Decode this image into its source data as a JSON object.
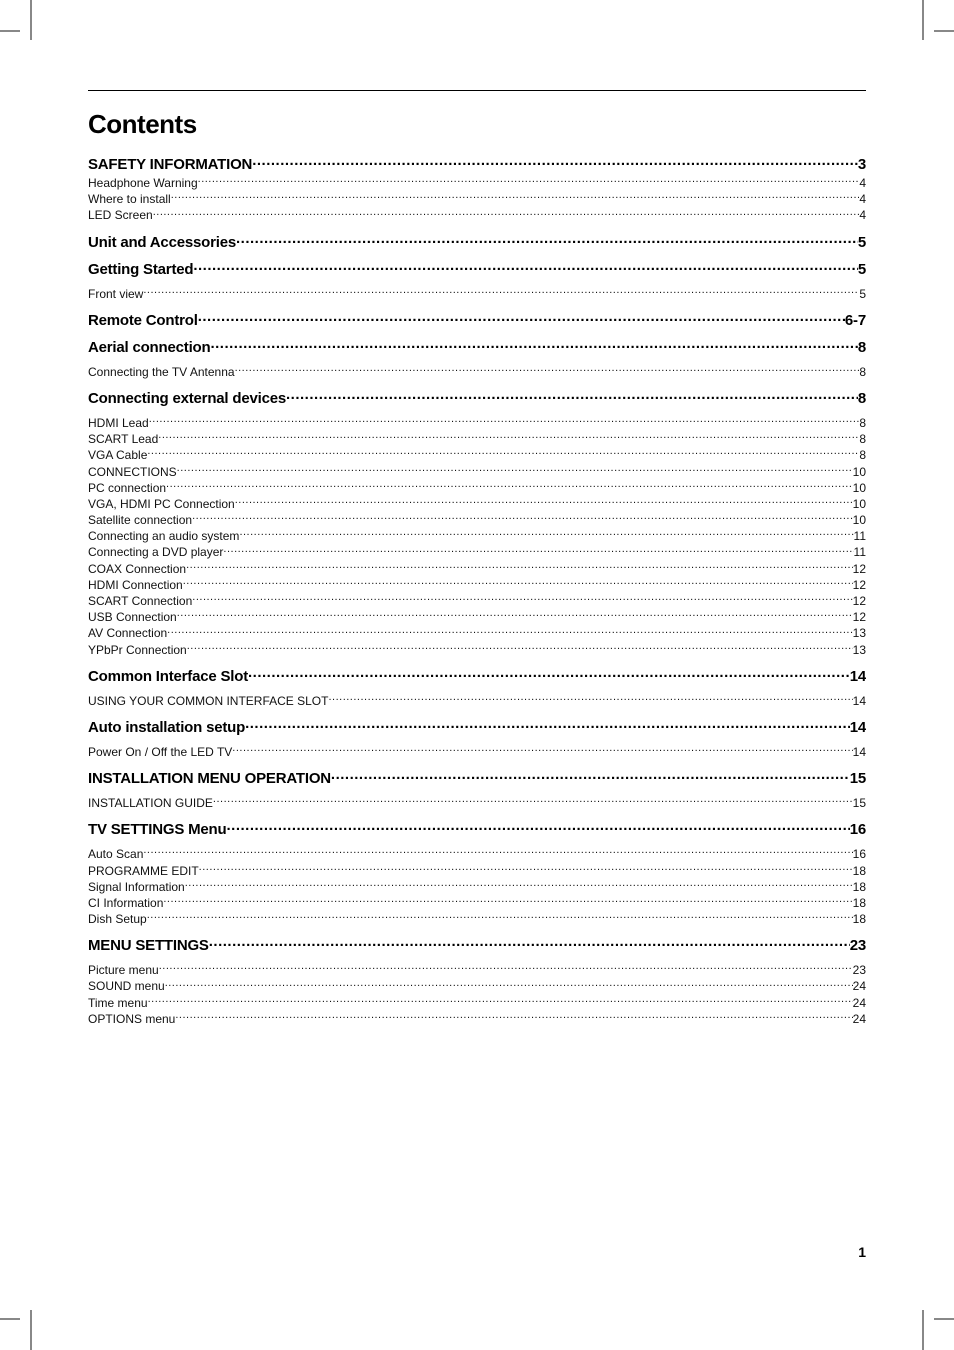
{
  "title": "Contents",
  "page_number": "1",
  "entries": [
    {
      "label": "SAFETY INFORMATION",
      "page": "3",
      "level": 1
    },
    {
      "label": "Headphone Warning",
      "page": "4",
      "level": 2
    },
    {
      "label": "Where to install",
      "page": "4",
      "level": 2
    },
    {
      "label": "LED Screen",
      "page": "4",
      "level": 2
    },
    {
      "label": "Unit and Accessories",
      "page": "5",
      "level": 1
    },
    {
      "label": "Getting Started",
      "page": "5",
      "level": 1
    },
    {
      "label": "Front view",
      "page": "5",
      "level": 2,
      "gap": true
    },
    {
      "label": "Remote Control",
      "page": "6-7",
      "level": 1
    },
    {
      "label": "Aerial connection",
      "page": "8",
      "level": 1
    },
    {
      "label": "Connecting the TV Antenna",
      "page": "8",
      "level": 2,
      "gap": true
    },
    {
      "label": "Connecting external devices",
      "page": "8",
      "level": 1
    },
    {
      "label": "HDMI Lead",
      "page": "8",
      "level": 2,
      "gap": true
    },
    {
      "label": "SCART Lead",
      "page": "8",
      "level": 2
    },
    {
      "label": "VGA Cable",
      "page": "8",
      "level": 2
    },
    {
      "label": "CONNECTIONS",
      "page": "10",
      "level": 2
    },
    {
      "label": "PC connection",
      "page": "10",
      "level": 2
    },
    {
      "label": "VGA, HDMI PC Connection",
      "page": "10",
      "level": 2
    },
    {
      "label": "Satellite connection",
      "page": "10",
      "level": 2
    },
    {
      "label": "Connecting an audio system",
      "page": "11",
      "level": 2
    },
    {
      "label": "Connecting a DVD player",
      "page": "11",
      "level": 2
    },
    {
      "label": "COAX Connection",
      "page": "12",
      "level": 2
    },
    {
      "label": "HDMI Connection",
      "page": "12",
      "level": 2
    },
    {
      "label": "SCART Connection",
      "page": "12",
      "level": 2
    },
    {
      "label": "USB Connection",
      "page": "12",
      "level": 2
    },
    {
      "label": "AV Connection",
      "page": "13",
      "level": 2
    },
    {
      "label": "YPbPr Connection",
      "page": "13",
      "level": 2
    },
    {
      "label": "Common Interface Slot",
      "page": "14",
      "level": 1
    },
    {
      "label": "USING YOUR COMMON INTERFACE SLOT",
      "page": "14",
      "level": 2,
      "gap": true
    },
    {
      "label": "Auto installation setup",
      "page": "14",
      "level": 1
    },
    {
      "label": "Power On / Off the LED TV",
      "page": "14",
      "level": 2,
      "gap": true
    },
    {
      "label": "INSTALLATION MENU OPERATION",
      "page": "15",
      "level": 1
    },
    {
      "label": "INSTALLATION GUIDE",
      "page": "15",
      "level": 2,
      "gap": true
    },
    {
      "label": "TV SETTINGS Menu",
      "page": "16",
      "level": 1
    },
    {
      "label": "Auto Scan",
      "page": "16",
      "level": 2,
      "gap": true
    },
    {
      "label": "PROGRAMME EDIT",
      "page": "18",
      "level": 2
    },
    {
      "label": "Signal Information",
      "page": "18",
      "level": 2
    },
    {
      "label": "CI Information",
      "page": "18",
      "level": 2
    },
    {
      "label": "Dish Setup",
      "page": "18",
      "level": 2
    },
    {
      "label": "MENU SETTINGS",
      "page": "23",
      "level": 1
    },
    {
      "label": "Picture menu",
      "page": "23",
      "level": 2,
      "gap": true
    },
    {
      "label": "SOUND menu",
      "page": "24",
      "level": 2
    },
    {
      "label": "Time menu",
      "page": "24",
      "level": 2
    },
    {
      "label": "OPTIONS menu",
      "page": "24",
      "level": 2
    }
  ]
}
